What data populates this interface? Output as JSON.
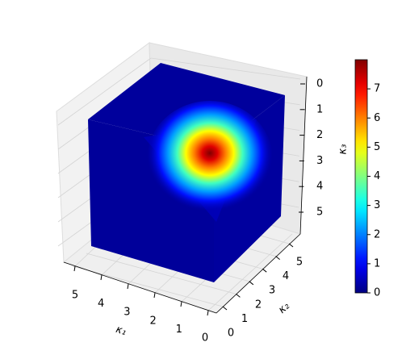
{
  "chart_data": {
    "type": "cube3d",
    "xlabel": "κ₁",
    "ylabel": "κ₂",
    "zlabel": "κ₃",
    "xticks": [
      0,
      1,
      2,
      3,
      4,
      5
    ],
    "yticks": [
      0,
      1,
      2,
      3,
      4,
      5
    ],
    "zticks": [
      0,
      1,
      2,
      3,
      4,
      5
    ],
    "colormap": "jet",
    "clim": [
      0,
      8
    ],
    "cticks": [
      0,
      1,
      2,
      3,
      4,
      5,
      6,
      7
    ],
    "grid": true
  }
}
